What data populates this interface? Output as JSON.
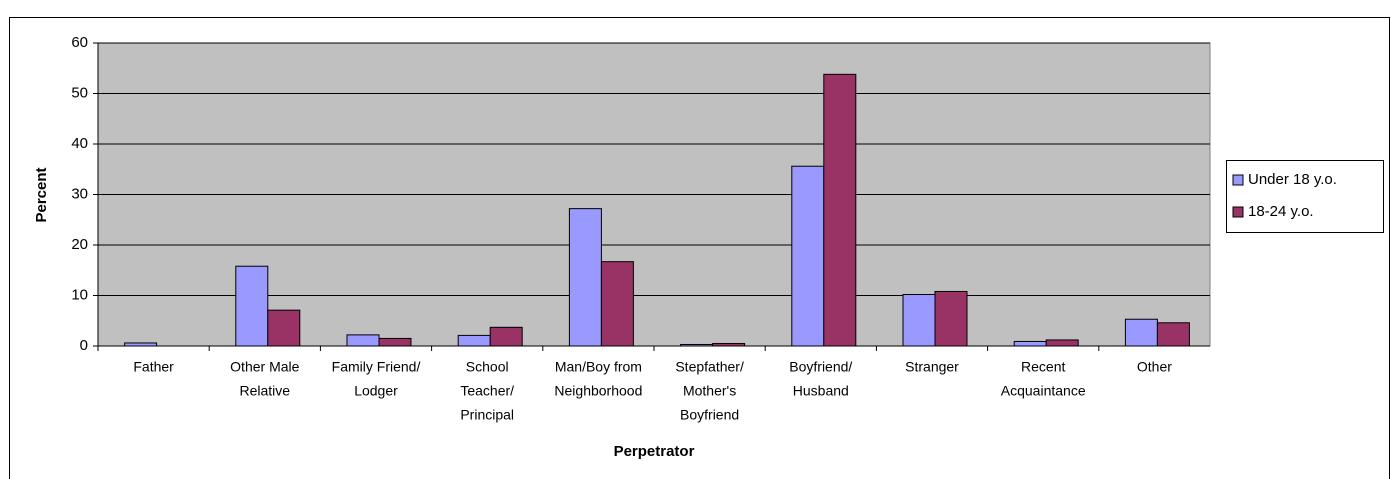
{
  "chart_data": {
    "type": "bar",
    "y_label": "Percent",
    "x_label": "Perpetrator",
    "categories": [
      [
        "Father"
      ],
      [
        "Other Male",
        "Relative"
      ],
      [
        "Family Friend/",
        "Lodger"
      ],
      [
        "School",
        "Teacher/",
        "Principal"
      ],
      [
        "Man/Boy from",
        "Neighborhood"
      ],
      [
        "Stepfather/",
        "Mother's",
        "Boyfriend"
      ],
      [
        "Boyfriend/",
        "Husband"
      ],
      [
        "Stranger"
      ],
      [
        "Recent",
        "Acquaintance"
      ],
      [
        "Other"
      ]
    ],
    "series": [
      {
        "name": "Under 18 y.o.",
        "color": "#9999ff",
        "values": [
          0.6,
          15.8,
          2.2,
          2.1,
          27.2,
          0.3,
          35.6,
          10.2,
          0.9,
          5.3
        ]
      },
      {
        "name": "18-24 y.o.",
        "color": "#993366",
        "values": [
          0,
          7.1,
          1.5,
          3.7,
          16.7,
          0.5,
          53.8,
          10.8,
          1.2,
          4.6
        ]
      }
    ],
    "ylim": [
      0,
      60
    ],
    "yticks": [
      0,
      10,
      20,
      30,
      40,
      50,
      60
    ],
    "grid": true,
    "legend": "right"
  }
}
